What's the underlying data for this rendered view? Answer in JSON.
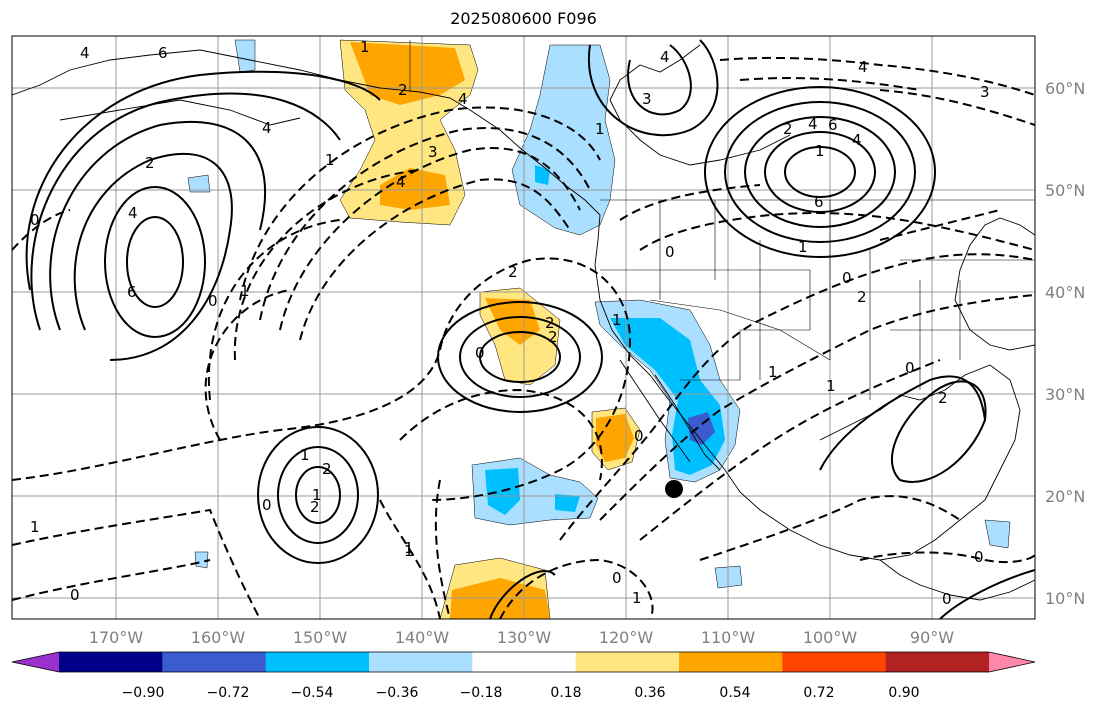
{
  "title": "2025080600 F096",
  "lat_labels": [
    "60°N",
    "50°N",
    "40°N",
    "30°N",
    "20°N",
    "10°N"
  ],
  "lon_labels": [
    "170°W",
    "160°W",
    "150°W",
    "140°W",
    "130°W",
    "120°W",
    "110°W",
    "100°W",
    "90°W"
  ],
  "colorbar": {
    "colors": [
      "#9932cc",
      "#00008b",
      "#3a5ccf",
      "#00bfff",
      "#aadfff",
      "#ffffff",
      "#ffe680",
      "#ffa500",
      "#ff4500",
      "#b22222",
      "#ff88aa"
    ],
    "tick_labels": [
      "−0.90",
      "−0.72",
      "−0.54",
      "−0.36",
      "−0.18",
      "0.18",
      "0.36",
      "0.54",
      "0.72",
      "0.90"
    ]
  },
  "contour_labels": [
    "4",
    "6",
    "4",
    "1",
    "2",
    "4",
    "0",
    "6",
    "0",
    "1",
    "1",
    "4",
    "3",
    "4",
    "2",
    "1",
    "3",
    "4",
    "1",
    "6",
    "3",
    "4",
    "4",
    "6",
    "1",
    "2",
    "0",
    "1",
    "0",
    "2",
    "0",
    "2",
    "2",
    "2",
    "0",
    "1",
    "2",
    "0",
    "1",
    "1",
    "0",
    "1",
    "0",
    "2",
    "1",
    "1",
    "0",
    "1",
    "2",
    "0",
    "4",
    "0",
    "1"
  ],
  "marker": {
    "label": "point-marker"
  }
}
